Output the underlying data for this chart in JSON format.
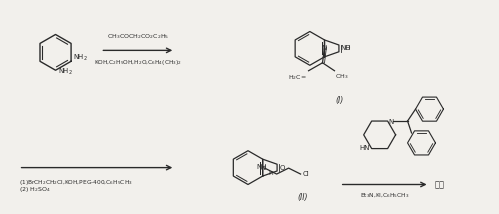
{
  "bg_color": "#f2f0ec",
  "text_color": "#2a2a2a",
  "fig_width": 4.99,
  "fig_height": 2.14,
  "dpi": 100,
  "reagent1_top": "CH$_3$COCH$_2$CO$_2$C$_2$H$_5$",
  "reagent1_bottom": "KOH,C$_2$H$_5$OH,H$_2$O,C$_6$H$_4$(CH$_3$)$_2$",
  "reagent2_line1": "(1)BrCH$_2$CH$_2$Cl,KOH,PEG-400,C$_6$H$_5$CH$_3$",
  "reagent2_line2": "(2) H$_2$SO$_4$",
  "product1_label": "(I)",
  "product2_label": "(II)",
  "final_reagent": "Et$_3$N,KI,C$_6$H$_5$CH$_3$",
  "final_product": "本品"
}
